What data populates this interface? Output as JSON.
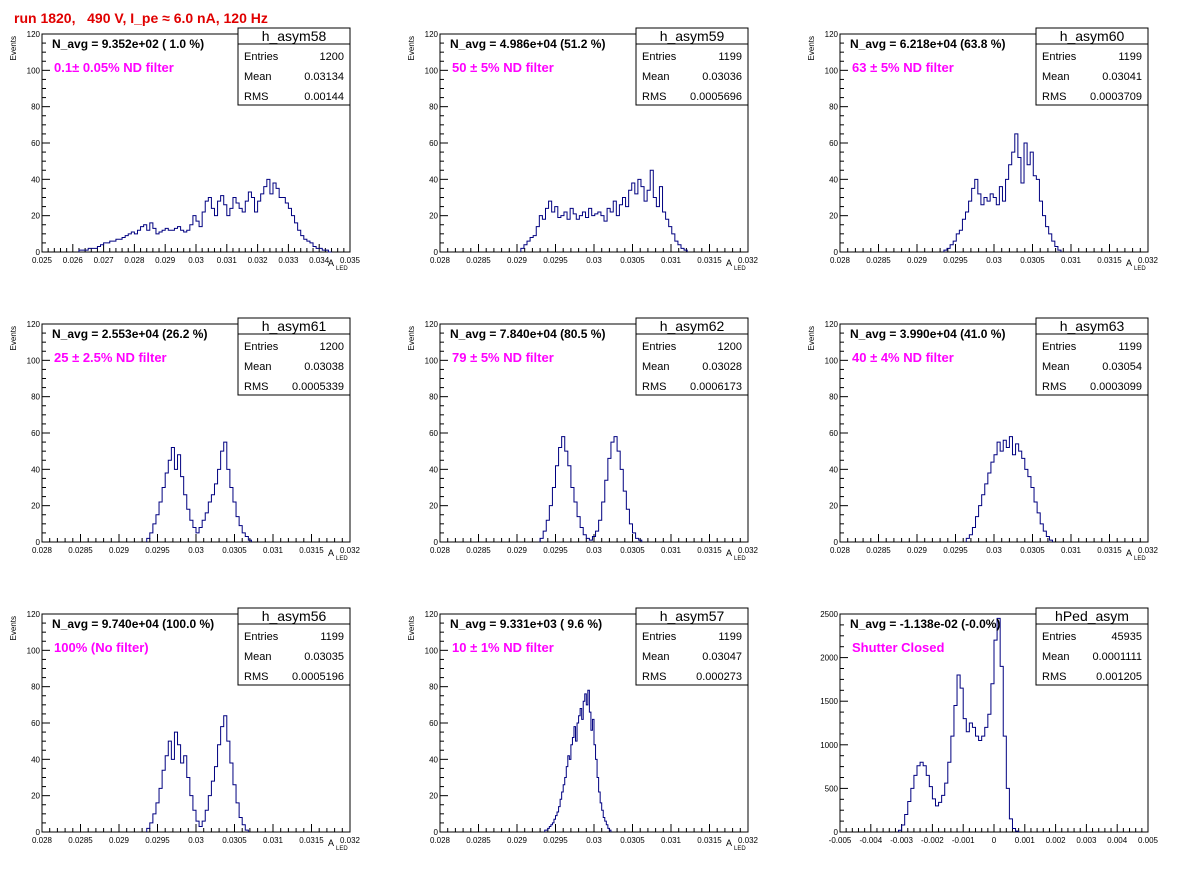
{
  "run_title": "run 1820,   490 V, I_pe ≈ 6.0 nA, 120 Hz",
  "colors": {
    "histogram_line": "#000080",
    "frame": "#000000",
    "annotation_magenta": "#ff00ff",
    "title_red": "#e00000"
  },
  "chart_data": [
    {
      "type": "histogram",
      "name": "h_asym58",
      "stats": {
        "entries": "1200",
        "mean": "0.03134",
        "rms": "0.00144"
      },
      "stat_labels": {
        "entries": "Entries",
        "mean": "Mean",
        "rms": "RMS"
      },
      "navg_text": "N_avg = 9.352e+02 ( 1.0 %)",
      "filter_text": "0.1± 0.05% ND filter",
      "xlabel": "A",
      "xlabel_sub": "LED",
      "ylabel": "Events",
      "xlim": [
        0.025,
        0.035
      ],
      "ylim": [
        0,
        120
      ],
      "xticks": [
        "0.025",
        "0.026",
        "0.027",
        "0.028",
        "0.029",
        "0.03",
        "0.031",
        "0.032",
        "0.033",
        "0.034",
        "0.035"
      ],
      "xtick_values": [
        0.025,
        0.026,
        0.027,
        0.028,
        0.029,
        0.03,
        0.031,
        0.032,
        0.033,
        0.034,
        0.035
      ],
      "yticks": [
        "0",
        "20",
        "40",
        "60",
        "80",
        "100",
        "120"
      ],
      "ytick_values": [
        0,
        20,
        40,
        60,
        80,
        100,
        120
      ],
      "bins": {
        "x_start": 0.0262,
        "width": 0.0001,
        "counts": [
          1,
          1,
          1,
          2,
          2,
          2,
          3,
          4,
          5,
          5,
          6,
          6,
          7,
          7,
          8,
          9,
          10,
          11,
          10,
          12,
          14,
          15,
          12,
          16,
          13,
          10,
          11,
          12,
          13,
          12,
          12,
          13,
          14,
          12,
          11,
          12,
          15,
          20,
          17,
          14,
          22,
          28,
          30,
          24,
          20,
          28,
          31,
          26,
          20,
          24,
          30,
          27,
          24,
          22,
          28,
          33,
          30,
          22,
          28,
          32,
          36,
          40,
          32,
          38,
          35,
          30,
          30,
          27,
          24,
          20,
          16,
          12,
          9,
          7,
          6,
          5,
          3,
          2,
          2,
          1,
          1,
          0
        ]
      }
    },
    {
      "type": "histogram",
      "name": "h_asym59",
      "stats": {
        "entries": "1199",
        "mean": "0.03036",
        "rms": "0.0005696"
      },
      "stat_labels": {
        "entries": "Entries",
        "mean": "Mean",
        "rms": "RMS"
      },
      "navg_text": "N_avg = 4.986e+04 (51.2 %)",
      "filter_text": "50 ± 5% ND filter",
      "xlabel": "A",
      "xlabel_sub": "LED",
      "ylabel": "Events",
      "xlim": [
        0.028,
        0.032
      ],
      "ylim": [
        0,
        120
      ],
      "xticks": [
        "0.028",
        "0.0285",
        "0.029",
        "0.0295",
        "0.03",
        "0.0305",
        "0.031",
        "0.0315",
        "0.032"
      ],
      "xtick_values": [
        0.028,
        0.0285,
        0.029,
        0.0295,
        0.03,
        0.0305,
        0.031,
        0.0315,
        0.032
      ],
      "yticks": [
        "0",
        "20",
        "40",
        "60",
        "80",
        "100",
        "120"
      ],
      "ytick_values": [
        0,
        20,
        40,
        60,
        80,
        100,
        120
      ],
      "bins": {
        "x_start": 0.02905,
        "width": 4e-05,
        "counts": [
          2,
          4,
          6,
          8,
          9,
          14,
          20,
          18,
          24,
          28,
          22,
          25,
          19,
          20,
          22,
          18,
          24,
          21,
          18,
          20,
          22,
          19,
          24,
          20,
          21,
          22,
          20,
          17,
          24,
          22,
          28,
          20,
          26,
          30,
          25,
          34,
          38,
          32,
          40,
          36,
          28,
          34,
          45,
          30,
          25,
          36,
          22,
          18,
          14,
          10,
          6,
          4,
          2,
          1
        ]
      }
    },
    {
      "type": "histogram",
      "name": "h_asym60",
      "stats": {
        "entries": "1199",
        "mean": "0.03041",
        "rms": "0.0003709"
      },
      "stat_labels": {
        "entries": "Entries",
        "mean": "Mean",
        "rms": "RMS"
      },
      "navg_text": "N_avg = 6.218e+04 (63.8 %)",
      "filter_text": "63 ± 5% ND filter",
      "xlabel": "A",
      "xlabel_sub": "LED",
      "ylabel": "Events",
      "xlim": [
        0.028,
        0.032
      ],
      "ylim": [
        0,
        120
      ],
      "xticks": [
        "0.028",
        "0.0285",
        "0.029",
        "0.0295",
        "0.03",
        "0.0305",
        "0.031",
        "0.0315",
        "0.032"
      ],
      "xtick_values": [
        0.028,
        0.0285,
        0.029,
        0.0295,
        0.03,
        0.0305,
        0.031,
        0.0315,
        0.032
      ],
      "yticks": [
        "0",
        "20",
        "40",
        "60",
        "80",
        "100",
        "120"
      ],
      "ytick_values": [
        0,
        20,
        40,
        60,
        80,
        100,
        120
      ],
      "bins": {
        "x_start": 0.02935,
        "width": 4e-05,
        "counts": [
          1,
          2,
          4,
          6,
          10,
          12,
          18,
          22,
          28,
          35,
          40,
          32,
          26,
          30,
          28,
          32,
          30,
          26,
          36,
          28,
          40,
          48,
          55,
          65,
          52,
          38,
          60,
          48,
          55,
          42,
          40,
          28,
          20,
          14,
          10,
          6,
          3,
          1
        ]
      }
    },
    {
      "type": "histogram",
      "name": "h_asym61",
      "stats": {
        "entries": "1200",
        "mean": "0.03038",
        "rms": "0.0005339"
      },
      "stat_labels": {
        "entries": "Entries",
        "mean": "Mean",
        "rms": "RMS"
      },
      "navg_text": "N_avg = 2.553e+04 (26.2 %)",
      "filter_text": "25 ± 2.5% ND filter",
      "xlabel": "A",
      "xlabel_sub": "LED",
      "ylabel": "Events",
      "xlim": [
        0.028,
        0.032
      ],
      "ylim": [
        0,
        120
      ],
      "xticks": [
        "0.028",
        "0.0285",
        "0.029",
        "0.0295",
        "0.03",
        "0.0305",
        "0.031",
        "0.0315",
        "0.032"
      ],
      "xtick_values": [
        0.028,
        0.0285,
        0.029,
        0.0295,
        0.03,
        0.0305,
        0.031,
        0.0315,
        0.032
      ],
      "yticks": [
        "0",
        "20",
        "40",
        "60",
        "80",
        "100",
        "120"
      ],
      "ytick_values": [
        0,
        20,
        40,
        60,
        80,
        100,
        120
      ],
      "bins": {
        "x_start": 0.02936,
        "width": 4e-05,
        "counts": [
          2,
          5,
          10,
          15,
          22,
          30,
          38,
          45,
          52,
          40,
          48,
          36,
          26,
          18,
          12,
          8,
          5,
          8,
          12,
          16,
          22,
          26,
          32,
          40,
          50,
          55,
          40,
          30,
          22,
          14,
          9,
          5,
          3,
          1
        ]
      }
    },
    {
      "type": "histogram",
      "name": "h_asym62",
      "stats": {
        "entries": "1200",
        "mean": "0.03028",
        "rms": "0.0006173"
      },
      "stat_labels": {
        "entries": "Entries",
        "mean": "Mean",
        "rms": "RMS"
      },
      "navg_text": "N_avg = 7.840e+04 (80.5 %)",
      "filter_text": "79 ± 5% ND filter",
      "xlabel": "A",
      "xlabel_sub": "LED",
      "ylabel": "Events",
      "xlim": [
        0.028,
        0.032
      ],
      "ylim": [
        0,
        120
      ],
      "xticks": [
        "0.028",
        "0.0285",
        "0.029",
        "0.0295",
        "0.03",
        "0.0305",
        "0.031",
        "0.0315",
        "0.032"
      ],
      "xtick_values": [
        0.028,
        0.0285,
        0.029,
        0.0295,
        0.03,
        0.0305,
        0.031,
        0.0315,
        0.032
      ],
      "yticks": [
        "0",
        "20",
        "40",
        "60",
        "80",
        "100",
        "120"
      ],
      "ytick_values": [
        0,
        20,
        40,
        60,
        80,
        100,
        120
      ],
      "bins": {
        "x_start": 0.0293,
        "width": 4e-05,
        "counts": [
          2,
          6,
          12,
          20,
          30,
          42,
          52,
          58,
          50,
          42,
          30,
          22,
          14,
          8,
          4,
          2,
          1,
          3,
          6,
          12,
          22,
          34,
          46,
          55,
          58,
          50,
          40,
          28,
          18,
          10,
          5,
          2,
          1
        ]
      }
    },
    {
      "type": "histogram",
      "name": "h_asym63",
      "stats": {
        "entries": "1199",
        "mean": "0.03054",
        "rms": "0.0003099"
      },
      "stat_labels": {
        "entries": "Entries",
        "mean": "Mean",
        "rms": "RMS"
      },
      "navg_text": "N_avg = 3.990e+04 (41.0 %)",
      "filter_text": "40 ± 4% ND filter",
      "xlabel": "A",
      "xlabel_sub": "LED",
      "ylabel": "Events",
      "xlim": [
        0.028,
        0.032
      ],
      "ylim": [
        0,
        120
      ],
      "xticks": [
        "0.028",
        "0.0285",
        "0.029",
        "0.0295",
        "0.03",
        "0.0305",
        "0.031",
        "0.0315",
        "0.032"
      ],
      "xtick_values": [
        0.028,
        0.0285,
        0.029,
        0.0295,
        0.03,
        0.0305,
        0.031,
        0.0315,
        0.032
      ],
      "yticks": [
        "0",
        "20",
        "40",
        "60",
        "80",
        "100",
        "120"
      ],
      "ytick_values": [
        0,
        20,
        40,
        60,
        80,
        100,
        120
      ],
      "bins": {
        "x_start": 0.02964,
        "width": 4e-05,
        "counts": [
          2,
          4,
          8,
          14,
          20,
          26,
          32,
          38,
          44,
          48,
          55,
          50,
          56,
          52,
          58,
          48,
          54,
          50,
          46,
          40,
          36,
          30,
          22,
          16,
          10,
          6,
          3,
          1
        ]
      }
    },
    {
      "type": "histogram",
      "name": "h_asym56",
      "stats": {
        "entries": "1199",
        "mean": "0.03035",
        "rms": "0.0005196"
      },
      "stat_labels": {
        "entries": "Entries",
        "mean": "Mean",
        "rms": "RMS"
      },
      "navg_text": "N_avg = 9.740e+04 (100.0 %)",
      "filter_text": "100% (No filter)",
      "xlabel": "A",
      "xlabel_sub": "LED",
      "ylabel": "Events",
      "xlim": [
        0.028,
        0.032
      ],
      "ylim": [
        0,
        120
      ],
      "xticks": [
        "0.028",
        "0.0285",
        "0.029",
        "0.0295",
        "0.03",
        "0.0305",
        "0.031",
        "0.0315",
        "0.032"
      ],
      "xtick_values": [
        0.028,
        0.0285,
        0.029,
        0.0295,
        0.03,
        0.0305,
        0.031,
        0.0315,
        0.032
      ],
      "yticks": [
        "0",
        "20",
        "40",
        "60",
        "80",
        "100",
        "120"
      ],
      "ytick_values": [
        0,
        20,
        40,
        60,
        80,
        100,
        120
      ],
      "bins": {
        "x_start": 0.02936,
        "width": 4e-05,
        "counts": [
          2,
          5,
          10,
          16,
          24,
          34,
          42,
          50,
          40,
          55,
          48,
          38,
          42,
          30,
          20,
          12,
          6,
          3,
          6,
          12,
          20,
          28,
          36,
          48,
          58,
          64,
          50,
          38,
          26,
          16,
          8,
          4,
          1
        ]
      }
    },
    {
      "type": "histogram",
      "name": "h_asym57",
      "stats": {
        "entries": "1199",
        "mean": "0.03047",
        "rms": "0.000273"
      },
      "stat_labels": {
        "entries": "Entries",
        "mean": "Mean",
        "rms": "RMS"
      },
      "navg_text": "N_avg = 9.331e+03 ( 9.6 %)",
      "filter_text": "10 ± 1% ND filter",
      "xlabel": "A",
      "xlabel_sub": "LED",
      "ylabel": "Events",
      "xlim": [
        0.028,
        0.032
      ],
      "ylim": [
        0,
        120
      ],
      "xticks": [
        "0.028",
        "0.0285",
        "0.029",
        "0.0295",
        "0.03",
        "0.0305",
        "0.031",
        "0.0315",
        "0.032"
      ],
      "xtick_values": [
        0.028,
        0.0285,
        0.029,
        0.0295,
        0.03,
        0.0305,
        0.031,
        0.0315,
        0.032
      ],
      "yticks": [
        "0",
        "20",
        "40",
        "60",
        "80",
        "100",
        "120"
      ],
      "ytick_values": [
        0,
        20,
        40,
        60,
        80,
        100,
        120
      ],
      "bins": {
        "x_start": 0.02936,
        "width": 2e-05,
        "counts": [
          1,
          1,
          2,
          3,
          4,
          5,
          7,
          9,
          11,
          14,
          18,
          22,
          26,
          30,
          36,
          42,
          40,
          48,
          52,
          58,
          50,
          60,
          64,
          68,
          62,
          72,
          76,
          70,
          78,
          66,
          56,
          62,
          48,
          40,
          30,
          22,
          16,
          12,
          8,
          6,
          4,
          2,
          1
        ]
      }
    },
    {
      "type": "histogram",
      "name": "hPed_asym",
      "stats": {
        "entries": "45935",
        "mean": "0.0001111",
        "rms": "0.001205"
      },
      "stat_labels": {
        "entries": "Entries",
        "mean": "Mean",
        "rms": "RMS"
      },
      "navg_text": "N_avg = -1.138e-02 (-0.0%)",
      "filter_text": "Shutter Closed",
      "xlabel": "",
      "xlabel_sub": "",
      "ylabel": "",
      "xlim": [
        -0.005,
        0.005
      ],
      "ylim": [
        0,
        2500
      ],
      "xticks": [
        "-0.005",
        "-0.004",
        "-0.003",
        "-0.002",
        "-0.001",
        "0",
        "0.001",
        "0.002",
        "0.003",
        "0.004",
        "0.005"
      ],
      "xtick_values": [
        -0.005,
        -0.004,
        -0.003,
        -0.002,
        -0.001,
        0,
        0.001,
        0.002,
        0.003,
        0.004,
        0.005
      ],
      "yticks": [
        "0",
        "500",
        "1000",
        "1500",
        "2000",
        "2500"
      ],
      "ytick_values": [
        0,
        500,
        1000,
        1500,
        2000,
        2500
      ],
      "bins": {
        "x_start": -0.0031,
        "width": 0.0001,
        "counts": [
          20,
          80,
          200,
          350,
          500,
          650,
          760,
          800,
          760,
          650,
          520,
          380,
          300,
          340,
          420,
          560,
          800,
          1100,
          1450,
          1800,
          1650,
          1300,
          1150,
          1250,
          1200,
          1100,
          1050,
          1100,
          1200,
          1350,
          1700,
          2200,
          2450,
          1900,
          1100,
          500,
          150,
          40,
          10
        ]
      }
    }
  ]
}
